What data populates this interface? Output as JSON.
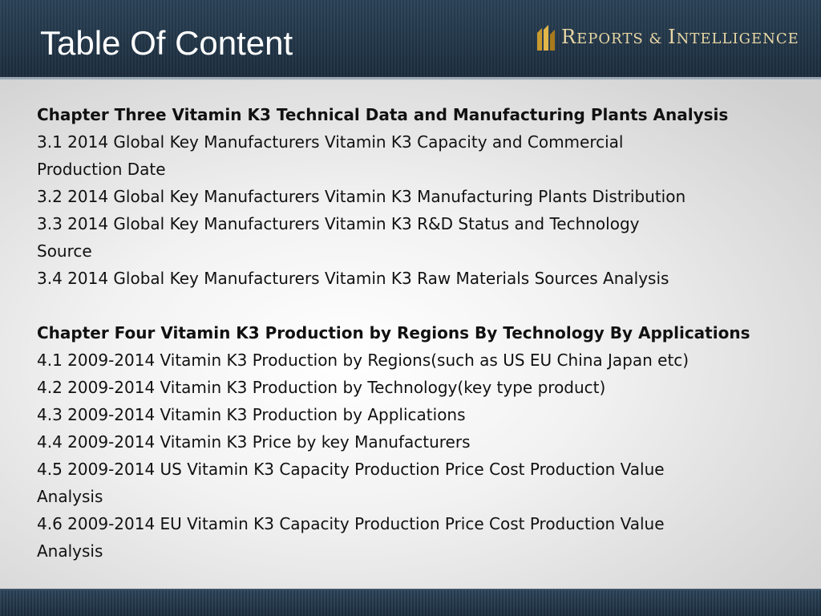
{
  "header": {
    "title": "Table Of Content",
    "brand": {
      "first_letter_1": "R",
      "rest_1": "EPORTS",
      "amp": "&",
      "first_letter_2": "I",
      "rest_2": "NTELLIGENCE",
      "logo_icon": "building-columns-icon",
      "color": "#e9d7a4"
    }
  },
  "toc": {
    "chapter3": {
      "heading": "Chapter Three Vitamin K3 Technical Data and Manufacturing Plants Analysis",
      "items": [
        "3.1 2014 Global Key Manufacturers Vitamin K3 Capacity and Commercial",
        "Production Date",
        "3.2 2014 Global Key Manufacturers Vitamin K3 Manufacturing Plants Distribution",
        "3.3 2014 Global Key Manufacturers Vitamin K3 R&D Status and Technology",
        "Source",
        "3.4 2014 Global Key Manufacturers Vitamin K3 Raw Materials Sources Analysis"
      ]
    },
    "chapter4": {
      "heading": "Chapter Four Vitamin K3 Production by Regions By Technology By Applications",
      "items": [
        "4.1 2009-2014 Vitamin K3 Production by Regions(such as US EU China Japan etc)",
        "4.2 2009-2014 Vitamin K3 Production by Technology(key type product)",
        "4.3 2009-2014 Vitamin K3 Production by Applications",
        "4.4 2009-2014 Vitamin K3 Price by key Manufacturers",
        "4.5 2009-2014 US Vitamin K3 Capacity Production Price Cost Production Value",
        "Analysis",
        "4.6 2009-2014 EU Vitamin K3 Capacity Production Price Cost Production Value",
        "Analysis"
      ]
    }
  }
}
